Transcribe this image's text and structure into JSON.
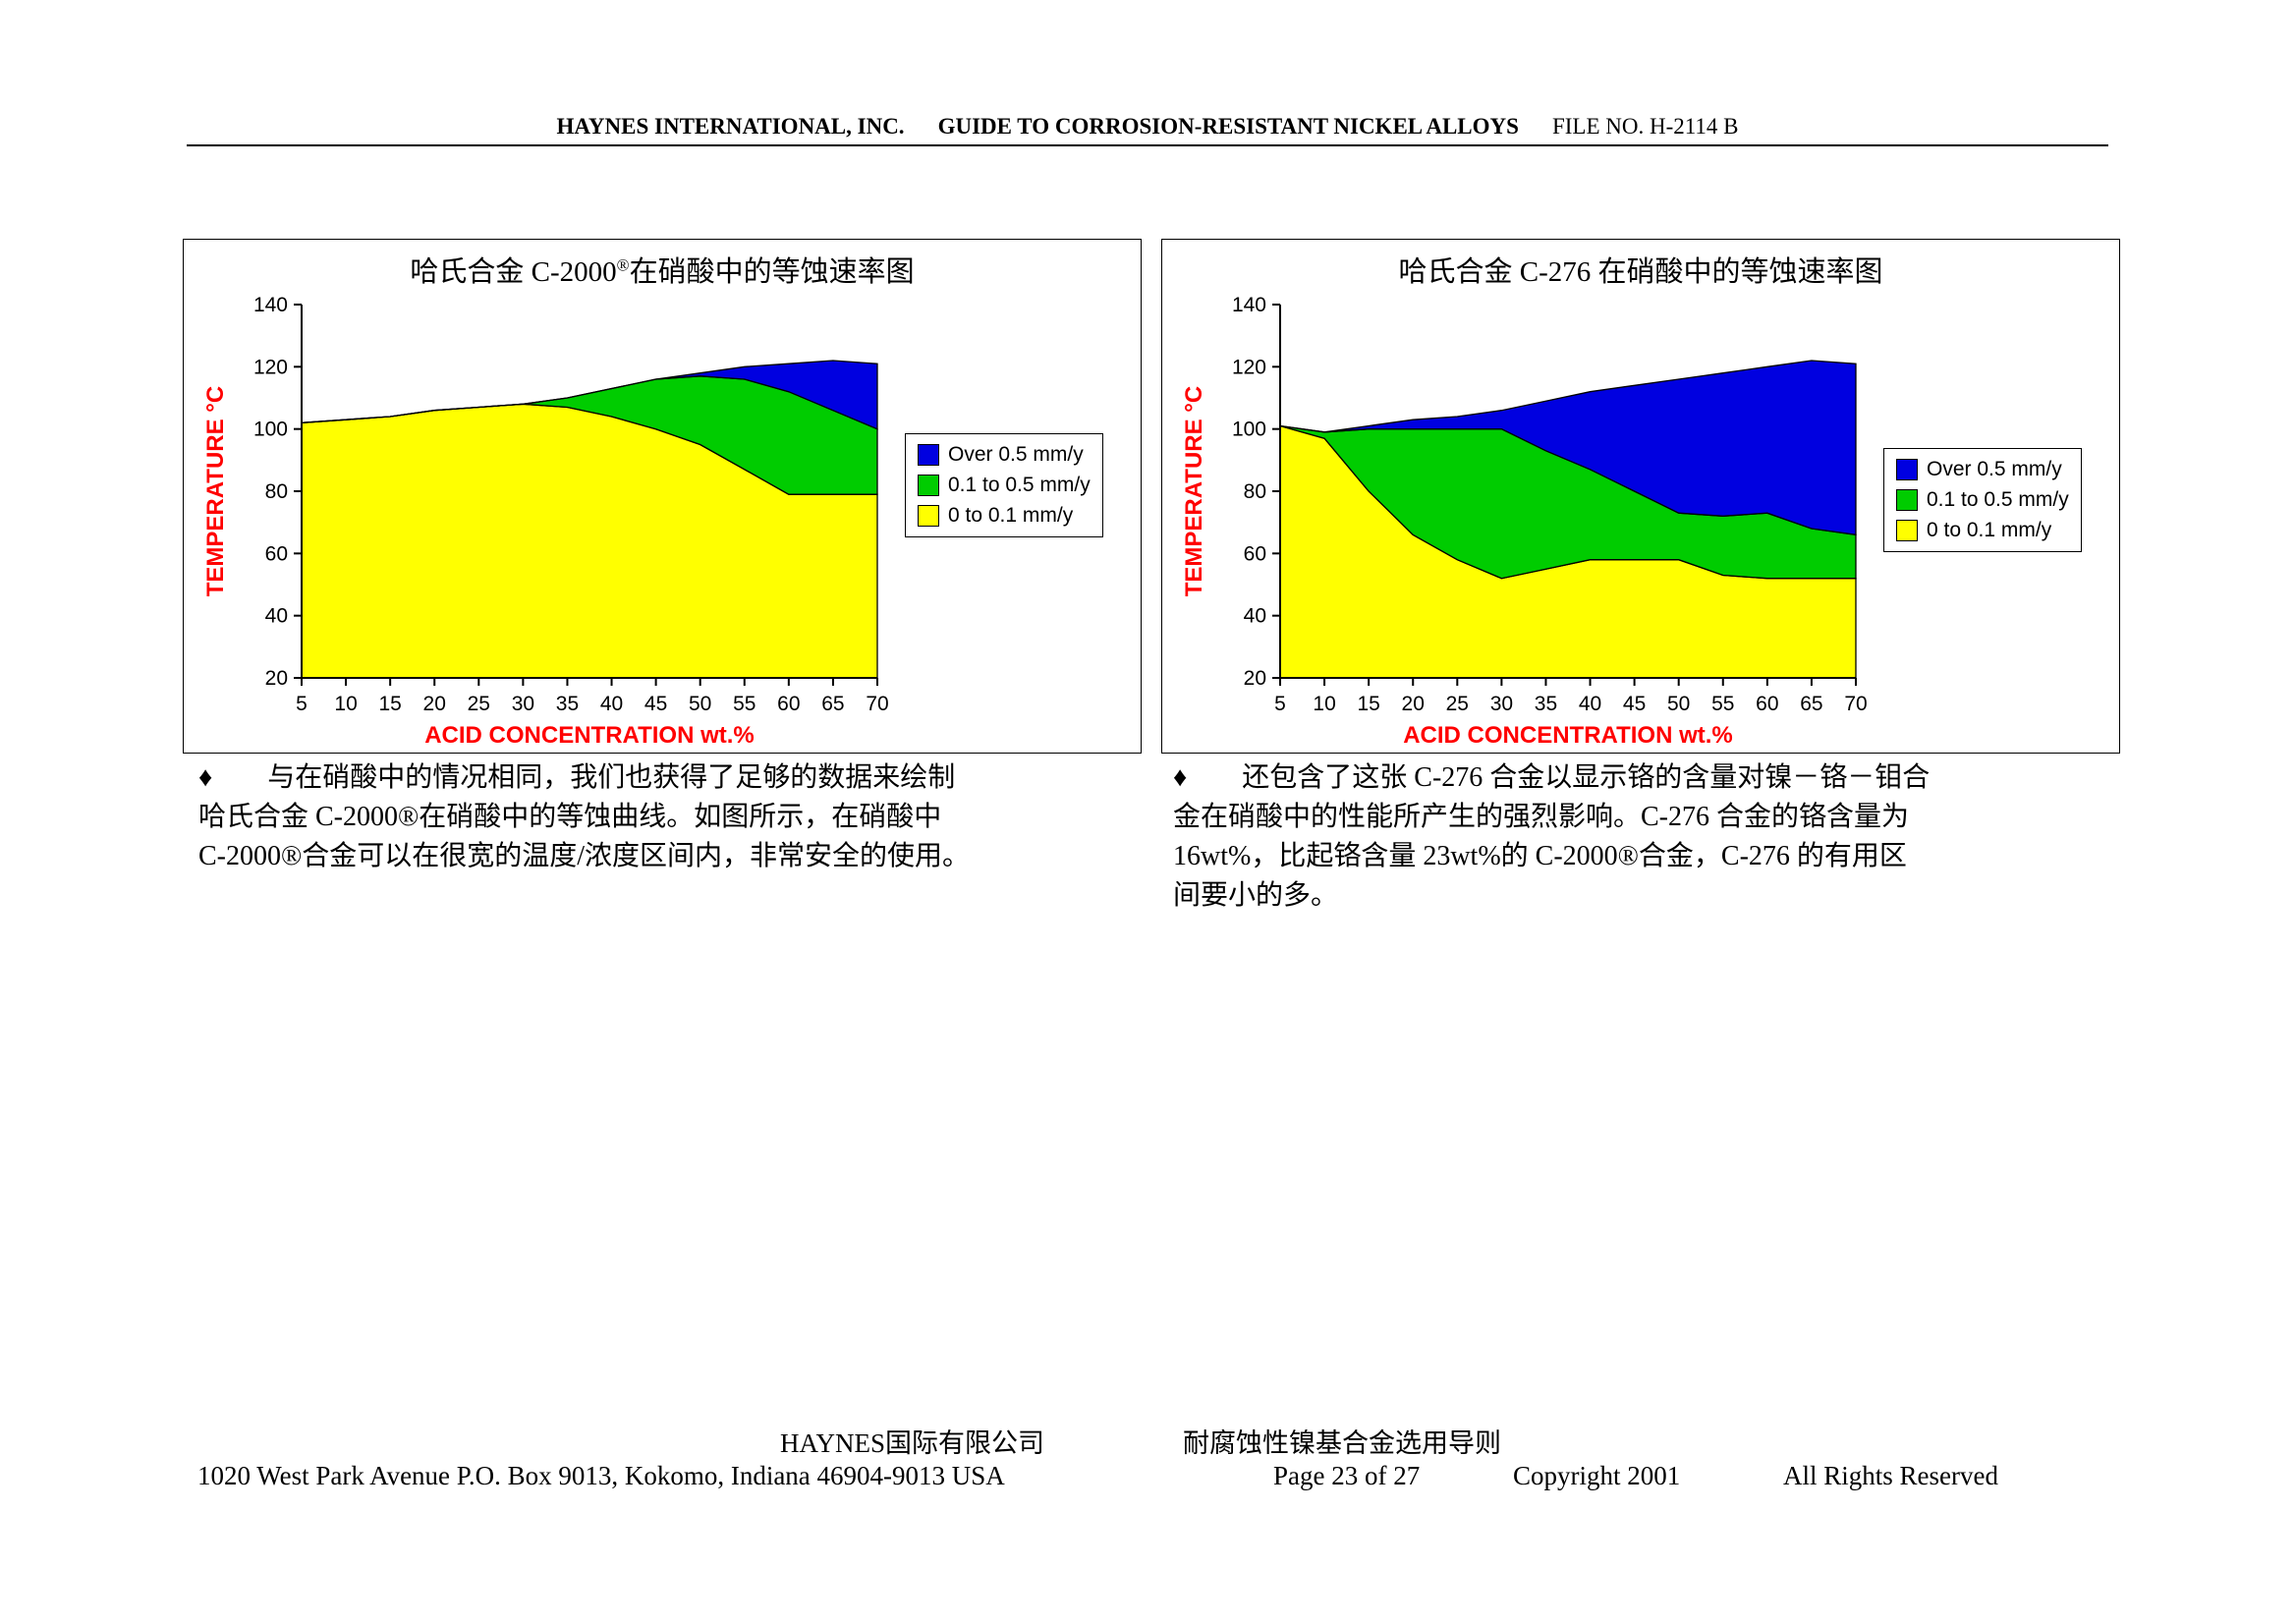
{
  "page": {
    "header": {
      "company": "HAYNES INTERNATIONAL, INC.",
      "guide": "GUIDE TO CORROSION-RESISTANT NICKEL ALLOYS",
      "file_no": "FILE NO. H-2114 B"
    },
    "footer": {
      "company_cn": "HAYNES国际有限公司",
      "guide_cn": "耐腐蚀性镍基合金选用导则",
      "address": "1020 West Park Avenue P.O. Box 9013, Kokomo, Indiana 46904-9013 USA",
      "page_no": "Page 23 of 27",
      "copyright": "Copyright 2001",
      "rights": "All Rights Reserved"
    }
  },
  "colors": {
    "region_over_0_5": "#0000E0",
    "region_0_1_to_0_5": "#00CC00",
    "region_0_to_0_1": "#FFFF00",
    "axis_title_red": "#FF0000",
    "text_black": "#000000"
  },
  "notes": [
    {
      "text": "♦　　与在硝酸中的情况相同，我们也获得了足够的数据来绘制\n哈氏合金 C-2000®在硝酸中的等蚀曲线。如图所示，在硝酸中\nC-2000®合金可以在很宽的温度/浓度区间内，非常安全的使用。"
    },
    {
      "text": "♦　　还包含了这张 C-276 合金以显示铬的含量对镍－铬－钼合\n金在硝酸中的性能所产生的强烈影响。C-276 合金的铬含量为\n16wt%，比起铬含量 23wt%的 C-2000®合金，C-276 的有用区\n间要小的多。"
    }
  ],
  "chart_data": [
    {
      "type": "area",
      "title": "哈氏合金 C-2000®在硝酸中的等蚀速率图",
      "title_parts": {
        "pre": "哈氏合金 C-2000",
        "sup": "®",
        "post": "在硝酸中的等蚀速率图"
      },
      "xlabel": "ACID CONCENTRATION  wt.%",
      "ylabel": "TEMPERATURE  °C",
      "xlim": [
        5,
        70
      ],
      "ylim": [
        20,
        140
      ],
      "x_ticks": [
        5,
        10,
        15,
        20,
        25,
        30,
        35,
        40,
        45,
        50,
        55,
        60,
        65,
        70
      ],
      "y_ticks": [
        20,
        40,
        60,
        80,
        100,
        120,
        140
      ],
      "grid": false,
      "legend_position": "right",
      "x": [
        5,
        10,
        15,
        20,
        25,
        30,
        35,
        40,
        45,
        50,
        55,
        60,
        65,
        70
      ],
      "series": [
        {
          "name": "Top of 0 to 0.1 mm/y region (°C)",
          "values": [
            102,
            103,
            104,
            106,
            107,
            108,
            107,
            104,
            100,
            95,
            87,
            79,
            79,
            79
          ]
        },
        {
          "name": "Top of 0.1 to 0.5 mm/y region (°C)",
          "values": [
            102,
            103,
            104,
            106,
            107,
            108,
            110,
            113,
            116,
            117,
            116,
            112,
            106,
            100
          ]
        },
        {
          "name": "Top of Over 0.5 mm/y region (°C)",
          "values": [
            102,
            103,
            104,
            106,
            107,
            108,
            110,
            113,
            116,
            118,
            120,
            121,
            122,
            121
          ]
        }
      ],
      "legend": [
        {
          "label": "Over 0.5 mm/y",
          "color": "#0000E0"
        },
        {
          "label": "0.1 to 0.5 mm/y",
          "color": "#00CC00"
        },
        {
          "label": "0 to 0.1 mm/y",
          "color": "#FFFF00"
        }
      ]
    },
    {
      "type": "area",
      "title": "哈氏合金 C-276 在硝酸中的等蚀速率图",
      "title_parts": {
        "pre": "哈氏合金 C-276",
        "sup": "",
        "post": " 在硝酸中的等蚀速率图"
      },
      "xlabel": "ACID CONCENTRATION  wt.%",
      "ylabel": "TEMPERATURE  °C",
      "xlim": [
        5,
        70
      ],
      "ylim": [
        20,
        140
      ],
      "x_ticks": [
        5,
        10,
        15,
        20,
        25,
        30,
        35,
        40,
        45,
        50,
        55,
        60,
        65,
        70
      ],
      "y_ticks": [
        20,
        40,
        60,
        80,
        100,
        120,
        140
      ],
      "grid": false,
      "legend_position": "right",
      "x": [
        5,
        10,
        15,
        20,
        25,
        30,
        35,
        40,
        45,
        50,
        55,
        60,
        65,
        70
      ],
      "series": [
        {
          "name": "Top of 0 to 0.1 mm/y region (°C)",
          "values": [
            101,
            97,
            80,
            66,
            58,
            52,
            55,
            58,
            58,
            58,
            53,
            52,
            52,
            52
          ]
        },
        {
          "name": "Top of 0.1 to 0.5 mm/y region (°C)",
          "values": [
            101,
            99,
            100,
            100,
            100,
            100,
            93,
            87,
            80,
            73,
            72,
            73,
            68,
            66
          ]
        },
        {
          "name": "Top of Over 0.5 mm/y region (°C)",
          "values": [
            101,
            99,
            101,
            103,
            104,
            106,
            109,
            112,
            114,
            116,
            118,
            120,
            122,
            121
          ]
        }
      ],
      "legend": [
        {
          "label": "Over 0.5 mm/y",
          "color": "#0000E0"
        },
        {
          "label": "0.1 to 0.5 mm/y",
          "color": "#00CC00"
        },
        {
          "label": "0 to 0.1 mm/y",
          "color": "#FFFF00"
        }
      ]
    }
  ]
}
